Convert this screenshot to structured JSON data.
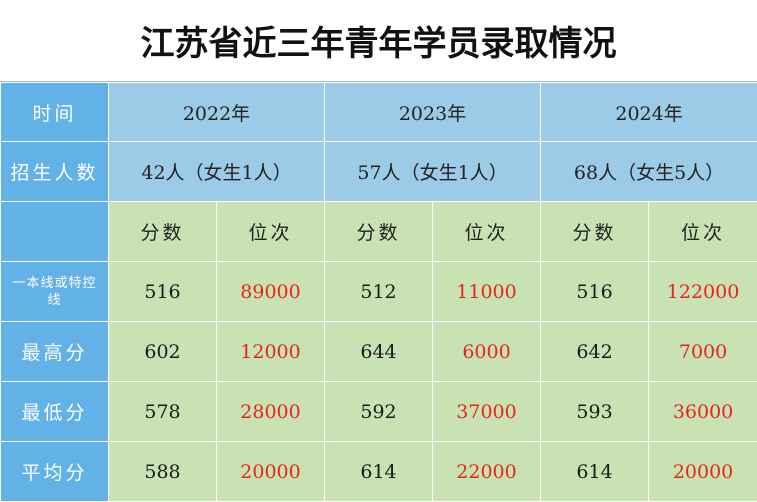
{
  "title": "江苏省近三年青年学员录取情况",
  "row_labels": {
    "time": "时间",
    "enrolled": "招生人数",
    "line": "一本线或特控线",
    "highest": "最高分",
    "lowest": "最低分",
    "average": "平均分"
  },
  "sub_headers": {
    "score": "分数",
    "rank": "位次"
  },
  "years": [
    {
      "year": "2022年",
      "enrolled": "42人（女生1人）",
      "line": {
        "score": "516",
        "rank": "89000"
      },
      "highest": {
        "score": "602",
        "rank": "12000"
      },
      "lowest": {
        "score": "578",
        "rank": "28000"
      },
      "average": {
        "score": "588",
        "rank": "20000"
      }
    },
    {
      "year": "2023年",
      "enrolled": "57人（女生1人）",
      "line": {
        "score": "512",
        "rank": "11000"
      },
      "highest": {
        "score": "644",
        "rank": "6000"
      },
      "lowest": {
        "score": "592",
        "rank": "37000"
      },
      "average": {
        "score": "614",
        "rank": "22000"
      }
    },
    {
      "year": "2024年",
      "enrolled": "68人（女生5人）",
      "line": {
        "score": "516",
        "rank": "122000"
      },
      "highest": {
        "score": "642",
        "rank": "7000"
      },
      "lowest": {
        "score": "593",
        "rank": "36000"
      },
      "average": {
        "score": "614",
        "rank": "20000"
      }
    }
  ],
  "colors": {
    "header_blue": "#62b2e8",
    "light_blue": "#9ccbe8",
    "light_green": "#c9e2b4",
    "rank_red": "#e8241c"
  }
}
